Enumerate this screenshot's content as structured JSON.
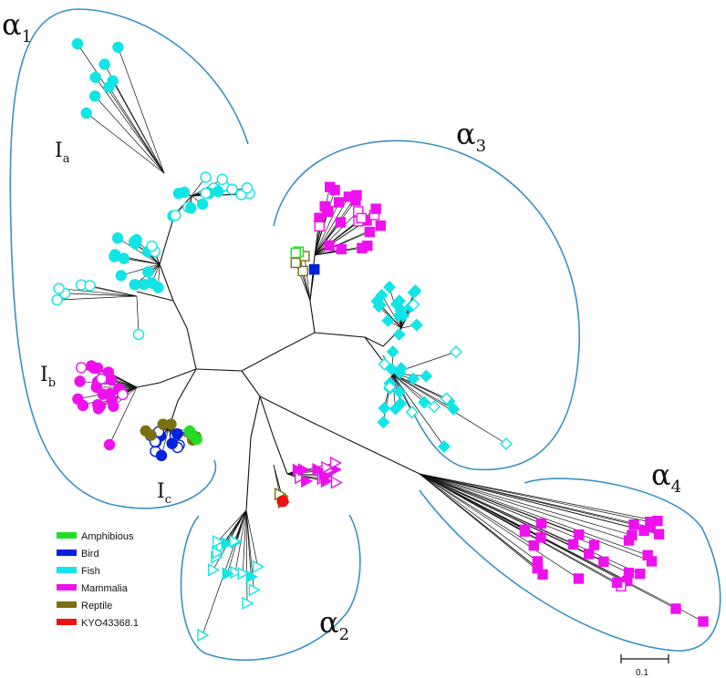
{
  "labels": {
    "clades": [
      "α",
      "α",
      "α",
      "α"
    ],
    "clade_subs": [
      "1",
      "2",
      "3",
      "4"
    ],
    "subgroups": [
      "I",
      "I",
      "I"
    ],
    "subgroup_subs": [
      "a",
      "b",
      "c"
    ]
  },
  "legend": {
    "items": [
      {
        "label": "Amphibious",
        "color": "#22dd22"
      },
      {
        "label": "Bird",
        "color": "#0022dd"
      },
      {
        "label": "Fish",
        "color": "#11e5e5"
      },
      {
        "label": "Mammalia",
        "color": "#ee11ee"
      },
      {
        "label": "Reptile",
        "color": "#7a7010"
      },
      {
        "label": "KYO43368.1",
        "color": "#ee1111"
      }
    ]
  },
  "scale_bar": {
    "label": "0.1"
  },
  "colors": {
    "outline": "#3a90c5",
    "branch": "#111111",
    "amphibious": "#22dd22",
    "bird": "#0022dd",
    "fish": "#11e5e5",
    "mammalia": "#ee11ee",
    "reptile": "#7a7010",
    "query": "#ee1111"
  }
}
